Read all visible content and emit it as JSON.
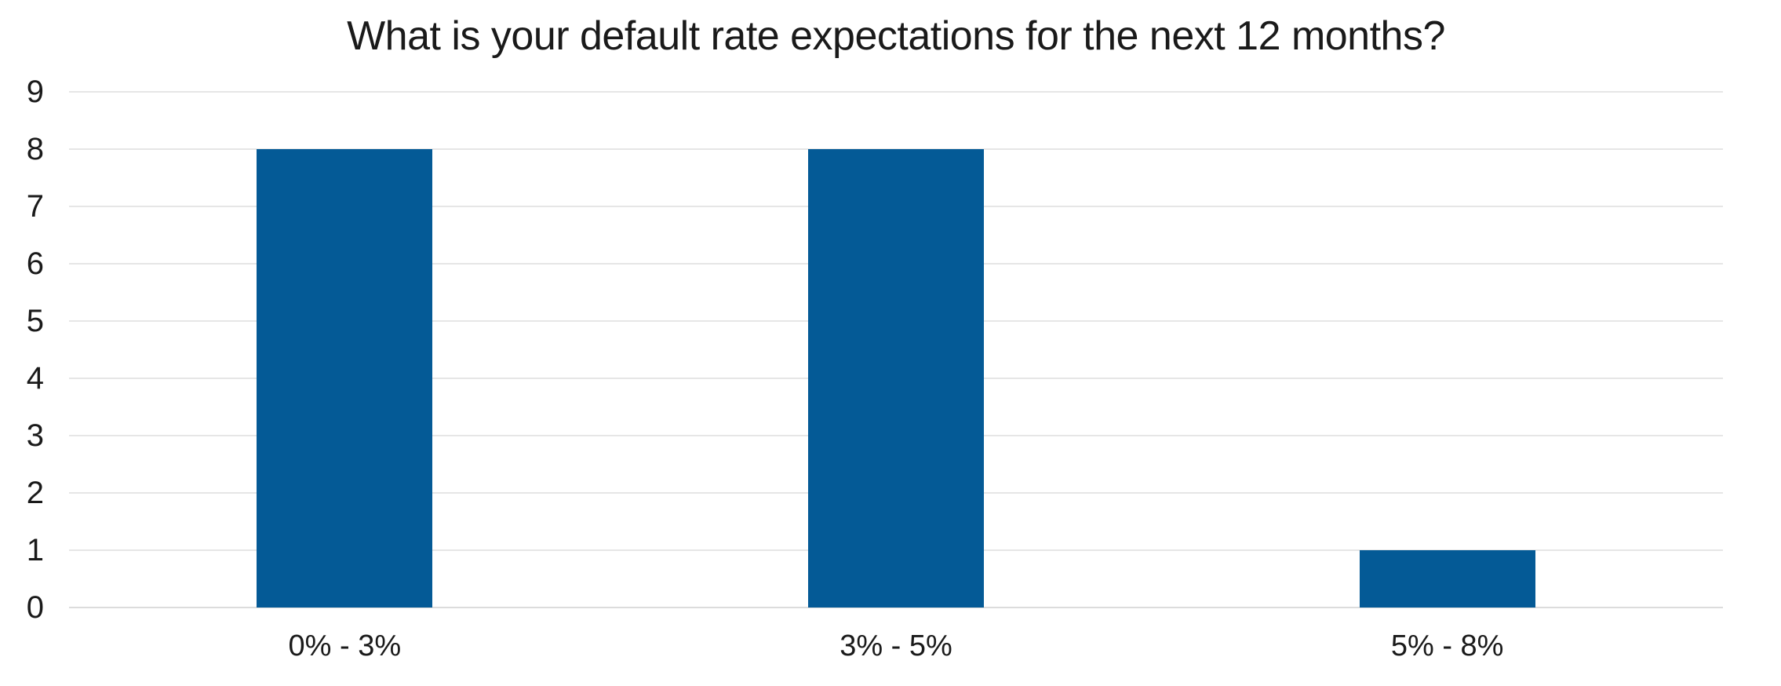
{
  "chart_data": {
    "type": "bar",
    "title": "What is your default rate expectations for the next 12 months?",
    "categories": [
      "0% - 3%",
      "3% - 5%",
      "5% - 8%"
    ],
    "values": [
      8,
      8,
      1
    ],
    "xlabel": "",
    "ylabel": "",
    "ylim": [
      0,
      9
    ],
    "yticks": [
      0,
      1,
      2,
      3,
      4,
      5,
      6,
      7,
      8,
      9
    ],
    "grid": "horizontal gridlines on",
    "legend_position": "none",
    "colors": {
      "bar": "#045a96",
      "gridline": "#e6e6e6",
      "baseline": "#dcdcdc",
      "text": "#1a1a1a",
      "background": "#ffffff"
    }
  }
}
